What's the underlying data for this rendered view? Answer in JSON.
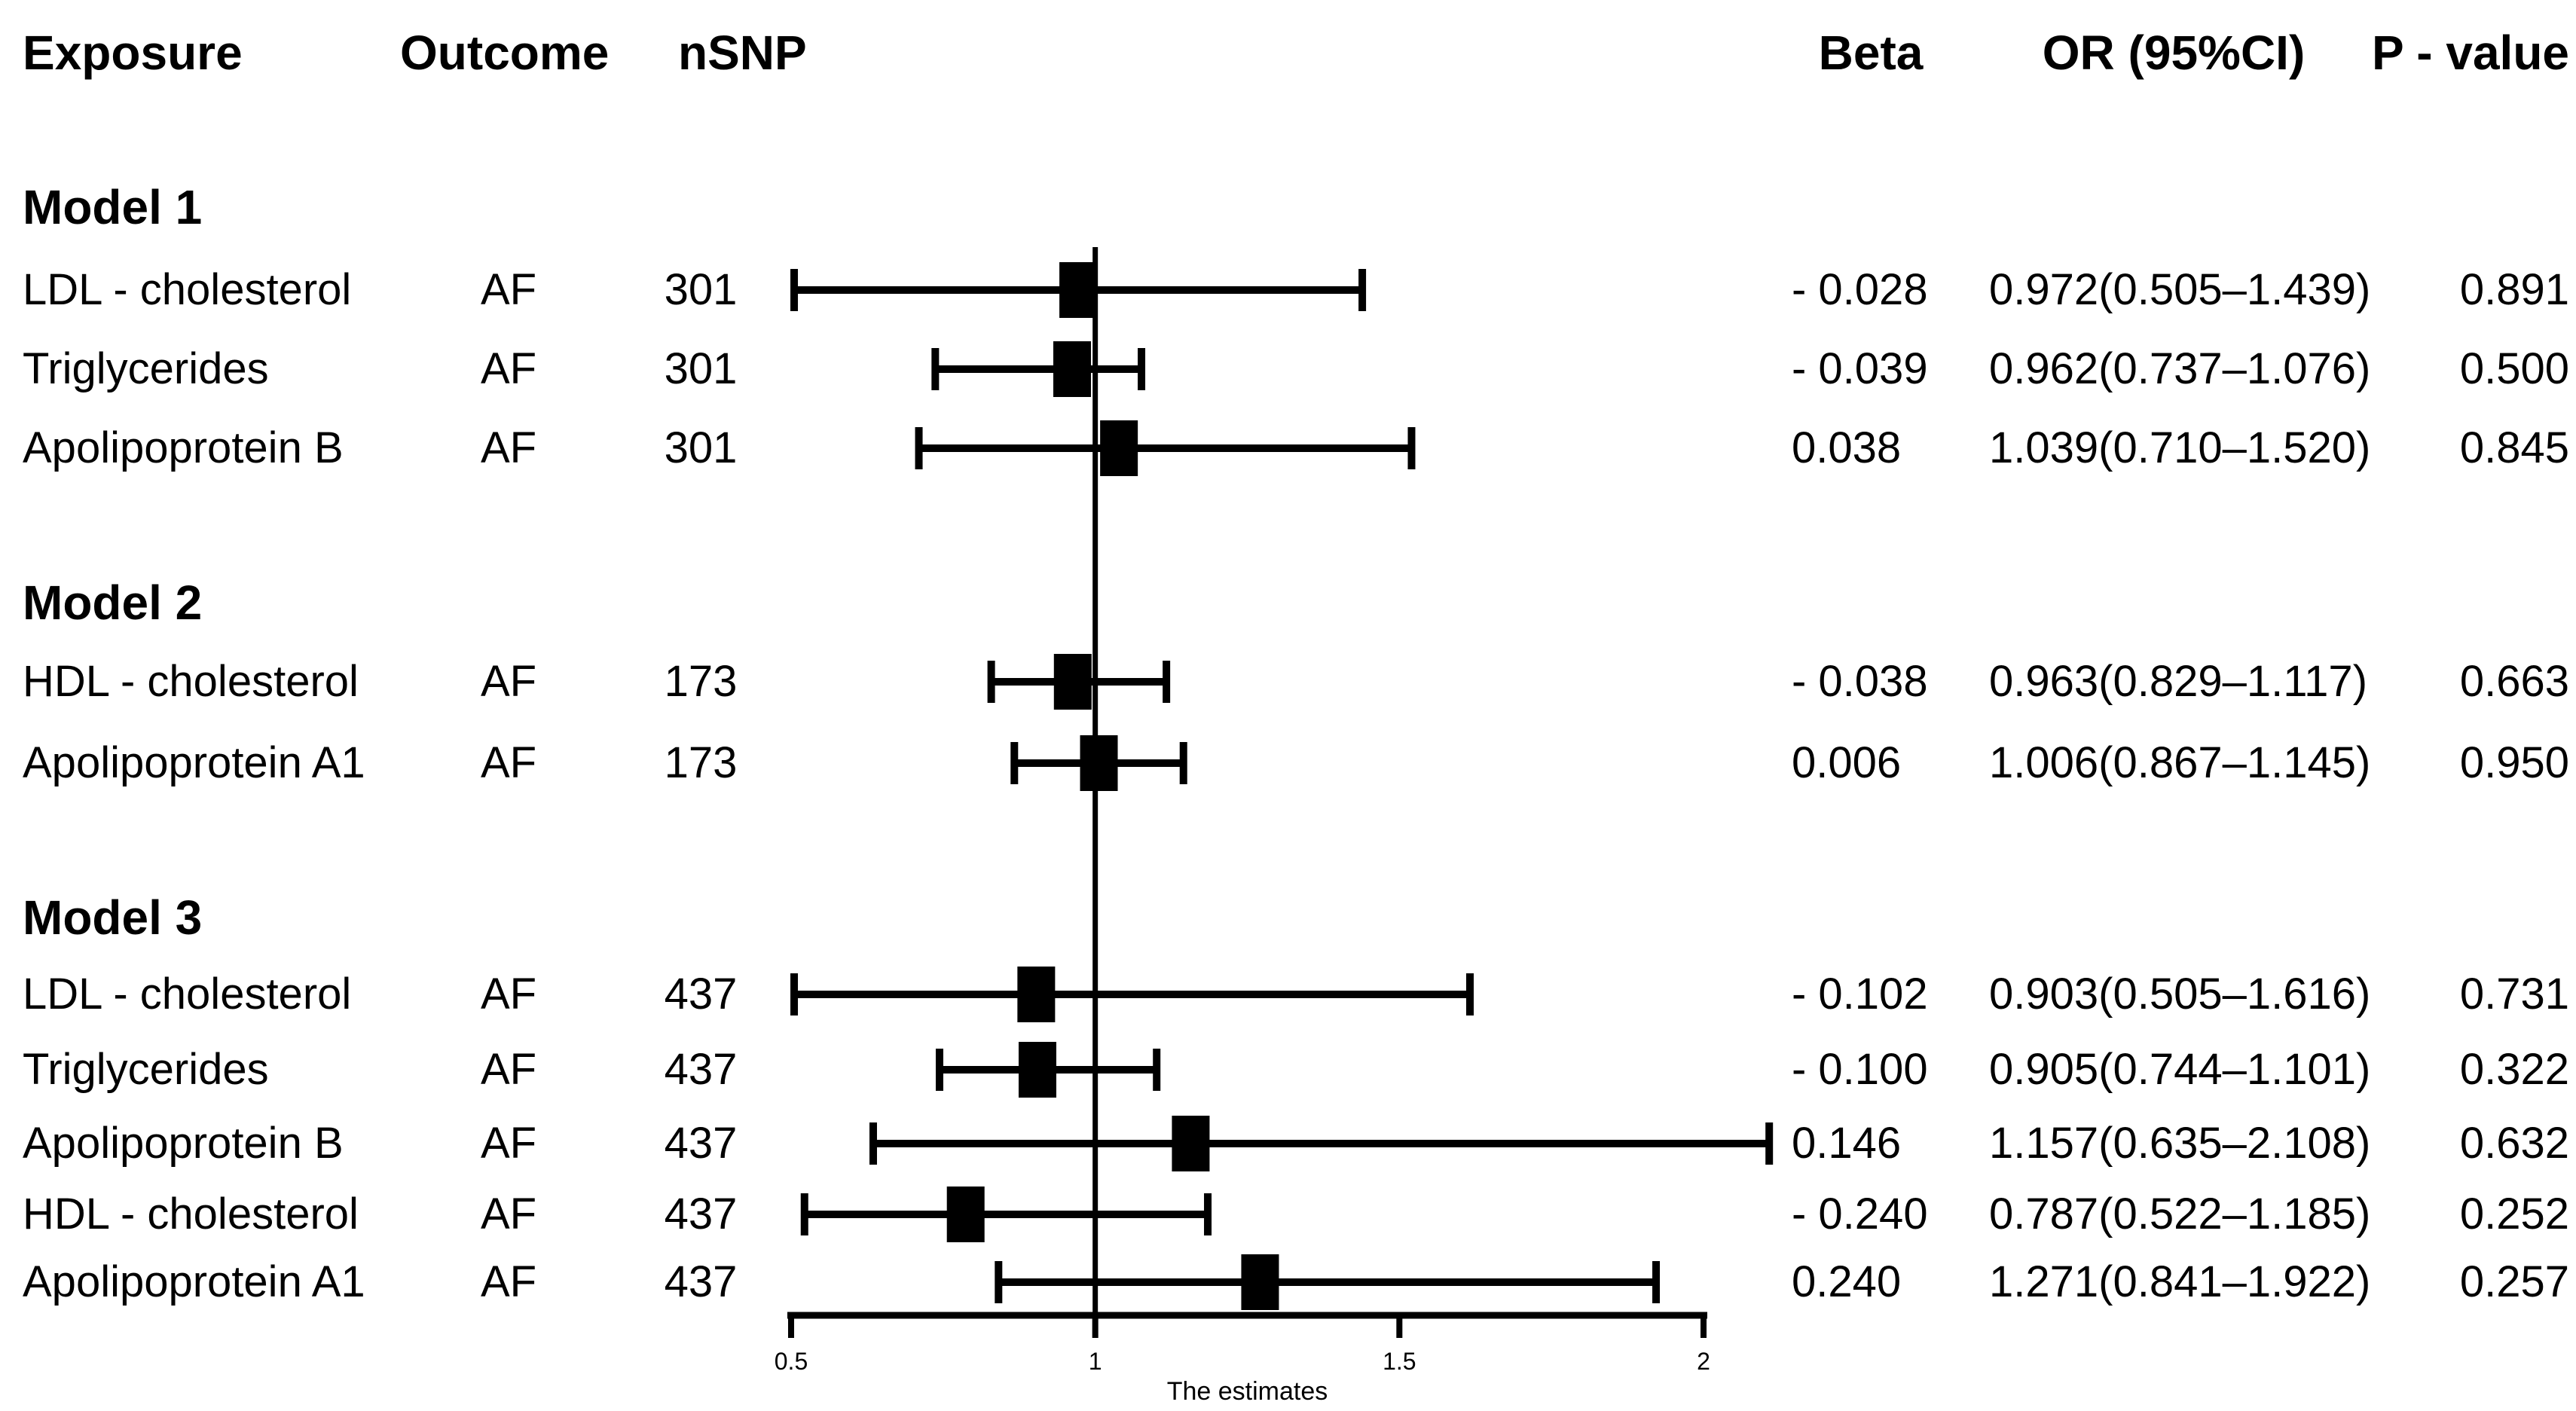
{
  "page": {
    "background": "#ffffff",
    "text_color": "#000000"
  },
  "header": {
    "exposure": "Exposure",
    "outcome": "Outcome",
    "nsnp": "nSNP",
    "beta": "Beta",
    "or_ci": "OR (95%CI)",
    "p_value": "P - value"
  },
  "chart_data": {
    "type": "scatter",
    "subtype": "forest-plot",
    "title": "",
    "xlabel": "The estimates",
    "xlim": [
      0.5,
      2
    ],
    "xticks": [
      "0.5",
      "1",
      "1.5",
      "2"
    ],
    "reference_line": 1,
    "grid": false,
    "legend": "none",
    "marker": {
      "shape": "square",
      "color": "#000000"
    },
    "groups": [
      {
        "label": "Model 1",
        "points": [
          {
            "exposure": "LDL - cholesterol",
            "outcome": "AF",
            "nsnp": "301",
            "beta": -0.028,
            "beta_text": "- 0.028",
            "or": 0.972,
            "ci_low": 0.505,
            "ci_high": 1.439,
            "or_ci_text": "0.972(0.505–1.439)",
            "p_text": "0.891"
          },
          {
            "exposure": "Triglycerides",
            "outcome": "AF",
            "nsnp": "301",
            "beta": -0.039,
            "beta_text": "- 0.039",
            "or": 0.962,
            "ci_low": 0.737,
            "ci_high": 1.076,
            "or_ci_text": "0.962(0.737–1.076)",
            "p_text": "0.500"
          },
          {
            "exposure": "Apolipoprotein B",
            "outcome": "AF",
            "nsnp": "301",
            "beta": 0.038,
            "beta_text": "0.038",
            "or": 1.039,
            "ci_low": 0.71,
            "ci_high": 1.52,
            "or_ci_text": "1.039(0.710–1.520)",
            "p_text": "0.845"
          }
        ]
      },
      {
        "label": "Model 2",
        "points": [
          {
            "exposure": "HDL - cholesterol",
            "outcome": "AF",
            "nsnp": "173",
            "beta": -0.038,
            "beta_text": "- 0.038",
            "or": 0.963,
            "ci_low": 0.829,
            "ci_high": 1.117,
            "or_ci_text": "0.963(0.829–1.117)",
            "p_text": "0.663"
          },
          {
            "exposure": "Apolipoprotein A1",
            "outcome": "AF",
            "nsnp": "173",
            "beta": 0.006,
            "beta_text": "0.006",
            "or": 1.006,
            "ci_low": 0.867,
            "ci_high": 1.145,
            "or_ci_text": "1.006(0.867–1.145)",
            "p_text": "0.950"
          }
        ]
      },
      {
        "label": "Model 3",
        "points": [
          {
            "exposure": "LDL - cholesterol",
            "outcome": "AF",
            "nsnp": "437",
            "beta": -0.102,
            "beta_text": "- 0.102",
            "or": 0.903,
            "ci_low": 0.505,
            "ci_high": 1.616,
            "or_ci_text": "0.903(0.505–1.616)",
            "p_text": "0.731"
          },
          {
            "exposure": "Triglycerides",
            "outcome": "AF",
            "nsnp": "437",
            "beta": -0.1,
            "beta_text": "- 0.100",
            "or": 0.905,
            "ci_low": 0.744,
            "ci_high": 1.101,
            "or_ci_text": "0.905(0.744–1.101)",
            "p_text": "0.322"
          },
          {
            "exposure": "Apolipoprotein B",
            "outcome": "AF",
            "nsnp": "437",
            "beta": 0.146,
            "beta_text": "0.146",
            "or": 1.157,
            "ci_low": 0.635,
            "ci_high": 2.108,
            "or_ci_text": "1.157(0.635–2.108)",
            "p_text": "0.632"
          },
          {
            "exposure": "HDL - cholesterol",
            "outcome": "AF",
            "nsnp": "437",
            "beta": -0.24,
            "beta_text": "- 0.240",
            "or": 0.787,
            "ci_low": 0.522,
            "ci_high": 1.185,
            "or_ci_text": "0.787(0.522–1.185)",
            "p_text": "0.252"
          },
          {
            "exposure": "Apolipoprotein A1",
            "outcome": "AF",
            "nsnp": "437",
            "beta": 0.24,
            "beta_text": "0.240",
            "or": 1.271,
            "ci_low": 0.841,
            "ci_high": 1.922,
            "or_ci_text": "1.271(0.841–1.922)",
            "p_text": "0.257"
          }
        ]
      }
    ]
  }
}
